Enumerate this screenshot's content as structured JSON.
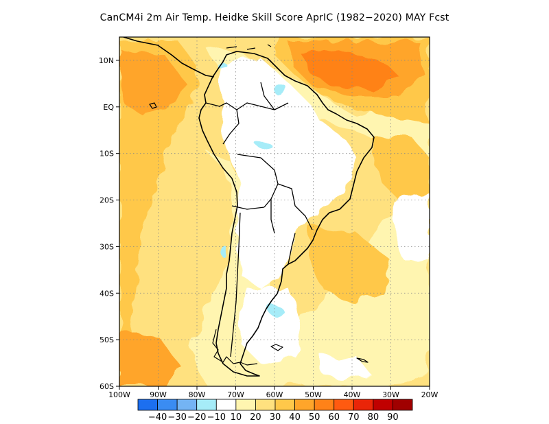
{
  "title": "CanCM4i  2m Air Temp. Heidke Skill Score AprIC (1982−2020) MAY Fcst",
  "map": {
    "lon_range": [
      -100,
      -20
    ],
    "lat_range": [
      -60,
      15
    ],
    "lat_ticks": [
      {
        "value": 10,
        "label": "10N"
      },
      {
        "value": 0,
        "label": "EQ"
      },
      {
        "value": -10,
        "label": "10S"
      },
      {
        "value": -20,
        "label": "20S"
      },
      {
        "value": -30,
        "label": "30S"
      },
      {
        "value": -40,
        "label": "40S"
      },
      {
        "value": -50,
        "label": "50S"
      },
      {
        "value": -60,
        "label": "60S"
      }
    ],
    "lon_ticks": [
      {
        "value": -100,
        "label": "100W"
      },
      {
        "value": -90,
        "label": "90W"
      },
      {
        "value": -80,
        "label": "80W"
      },
      {
        "value": -70,
        "label": "70W"
      },
      {
        "value": -60,
        "label": "60W"
      },
      {
        "value": -50,
        "label": "50W"
      },
      {
        "value": -40,
        "label": "40W"
      },
      {
        "value": -30,
        "label": "30W"
      },
      {
        "value": -20,
        "label": "20W"
      }
    ],
    "grid_lines": "dotted",
    "field_colors": {
      "c10": "#ffffff",
      "c20": "#fff5b0",
      "c30": "#ffe17f",
      "c40": "#ffc84a",
      "c50": "#ffa52a",
      "c60": "#ff8218",
      "neg": "#a6ecf8"
    }
  },
  "colorbar": {
    "colors": [
      "#1c6ff0",
      "#3a8cf2",
      "#74b4f4",
      "#a6ecf8",
      "#ffffff",
      "#fff5b0",
      "#ffe17f",
      "#ffc84a",
      "#ffa52a",
      "#ff8218",
      "#ff5a10",
      "#ea2508",
      "#c00000",
      "#a00000"
    ],
    "labels": [
      "−40",
      "−30",
      "−20",
      "−10",
      "10",
      "20",
      "30",
      "40",
      "50",
      "60",
      "70",
      "80",
      "90"
    ]
  }
}
